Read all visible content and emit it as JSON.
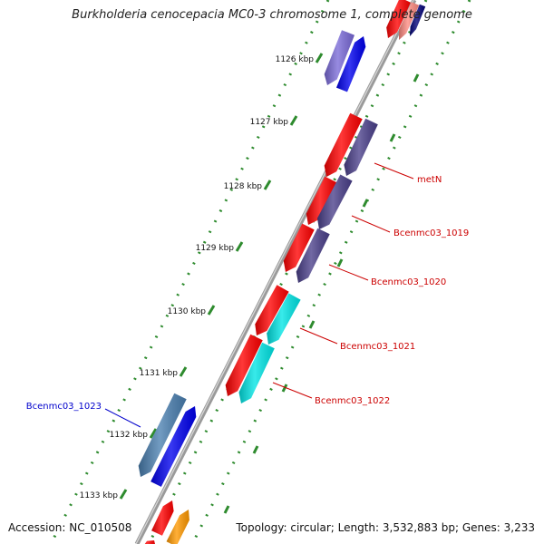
{
  "map": {
    "title": "Burkholderia cenocepacia MC0-3 chromosome 1, complete genome",
    "accession_label": "Accession: NC_010508",
    "topology_label": "Topology: circular; Length: 3,532,883 bp; Genes: 3,233"
  },
  "ticks": [
    {
      "label": "1126 kbp"
    },
    {
      "label": "1127 kbp"
    },
    {
      "label": "1128 kbp"
    },
    {
      "label": "1129 kbp"
    },
    {
      "label": "1130 kbp"
    },
    {
      "label": "1131 kbp"
    },
    {
      "label": "1132 kbp"
    },
    {
      "label": "1133 kbp"
    }
  ],
  "gene_labels": [
    {
      "name": "metN",
      "color": "#cc0000"
    },
    {
      "name": "Bcenmc03_1019",
      "color": "#cc0000"
    },
    {
      "name": "Bcenmc03_1020",
      "color": "#cc0000"
    },
    {
      "name": "Bcenmc03_1021",
      "color": "#cc0000"
    },
    {
      "name": "Bcenmc03_1022",
      "color": "#cc0000"
    },
    {
      "name": "Bcenmc03_1023",
      "color": "#0000cc"
    }
  ],
  "colors": {
    "backbone": "#8a8a8a",
    "tick": "#2e8b2e",
    "cds_forward": "#ff0000",
    "gene_dark": "#4a3f8a",
    "gene_blue": "#0000ee",
    "gene_light_purple": "#7a6ad8",
    "gene_cyan": "#00e5e5",
    "gene_steel": "#4a7fb0",
    "gene_orange": "#ff9900",
    "gene_salmon": "#ff8a80",
    "gene_navy": "#000077",
    "label_red": "#cc0000",
    "label_blue": "#0000cc"
  }
}
